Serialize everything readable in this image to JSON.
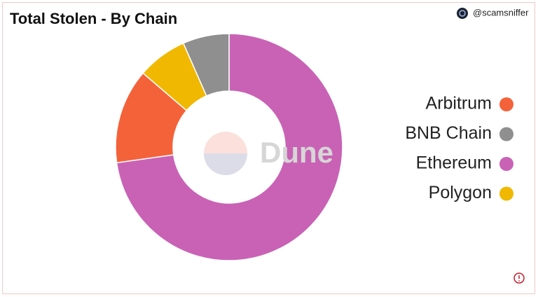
{
  "chart_data": {
    "type": "donut",
    "title": "Total Stolen - By Chain",
    "handle": "@scamsniffer",
    "watermark": "Dune",
    "categories": [
      "Arbitrum",
      "BNB Chain",
      "Ethereum",
      "Polygon"
    ],
    "values": [
      13.5,
      6.6,
      72.8,
      7.1
    ],
    "colors": [
      "#f4623a",
      "#8f8f8f",
      "#c962b5",
      "#f0b800"
    ],
    "legend": "right"
  }
}
